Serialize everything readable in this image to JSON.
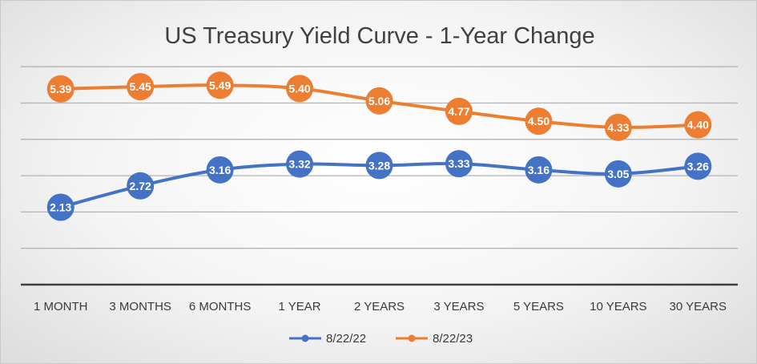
{
  "chart_data": {
    "type": "line",
    "title": "US Treasury Yield Curve - 1-Year Change",
    "categories": [
      "1 MONTH",
      "3 MONTHS",
      "6 MONTHS",
      "1 YEAR",
      "2 YEARS",
      "3 YEARS",
      "5 YEARS",
      "10 YEARS",
      "30 YEARS"
    ],
    "series": [
      {
        "name": "8/22/22",
        "color": "#4472C4",
        "values": [
          2.13,
          2.72,
          3.16,
          3.32,
          3.28,
          3.33,
          3.16,
          3.05,
          3.26
        ]
      },
      {
        "name": "8/22/23",
        "color": "#ED7D31",
        "values": [
          5.39,
          5.45,
          5.49,
          5.4,
          5.06,
          4.77,
          4.5,
          4.33,
          4.4
        ]
      }
    ],
    "ylim": [
      0,
      6
    ],
    "y_axis_labels_visible": false,
    "grid": true,
    "data_labels": true,
    "legend_position": "bottom"
  }
}
